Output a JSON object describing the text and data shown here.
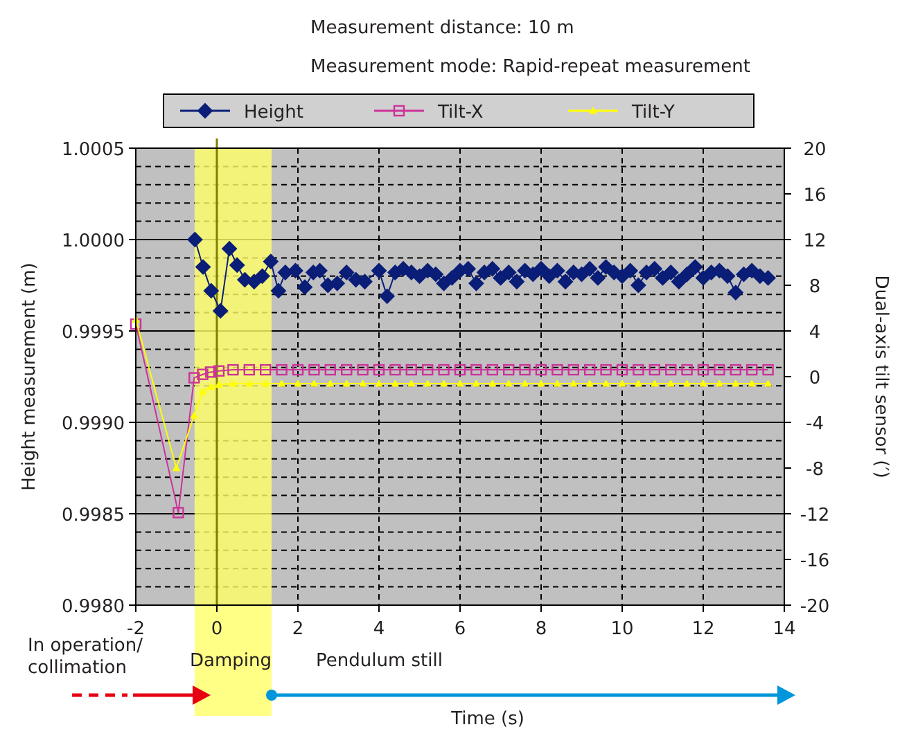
{
  "chart_data": {
    "type": "line",
    "title": "Measurement distance: 10 m",
    "subtitle": "Measurement mode: Rapid-repeat measurement",
    "xlabel": "Time (s)",
    "ylabel": "Height measurement (m)",
    "y2label": "Dual-axis tilt sensor (′)",
    "xlim": [
      -2,
      14
    ],
    "xticks": [
      -2,
      0,
      2,
      4,
      6,
      8,
      10,
      12,
      14
    ],
    "ylim": [
      0.998,
      1.0005
    ],
    "yticks": [
      {
        "value": 0.998,
        "label": "0.9980"
      },
      {
        "value": 0.9981,
        "label": null
      },
      {
        "value": 0.9982,
        "label": null
      },
      {
        "value": 0.9983,
        "label": null
      },
      {
        "value": 0.9984,
        "label": null
      },
      {
        "value": 0.9985,
        "label": "0.9985"
      },
      {
        "value": 0.9986,
        "label": null
      },
      {
        "value": 0.9987,
        "label": null
      },
      {
        "value": 0.9988,
        "label": null
      },
      {
        "value": 0.9989,
        "label": null
      },
      {
        "value": 0.999,
        "label": "0.9990"
      },
      {
        "value": 0.9991,
        "label": null
      },
      {
        "value": 0.9992,
        "label": null
      },
      {
        "value": 0.9993,
        "label": null
      },
      {
        "value": 0.9994,
        "label": null
      },
      {
        "value": 0.9995,
        "label": "0.9995"
      },
      {
        "value": 0.9996,
        "label": null
      },
      {
        "value": 0.9997,
        "label": null
      },
      {
        "value": 0.9998,
        "label": null
      },
      {
        "value": 0.9999,
        "label": null
      },
      {
        "value": 1.0,
        "label": "1.0000"
      },
      {
        "value": 1.0001,
        "label": null
      },
      {
        "value": 1.0002,
        "label": null
      },
      {
        "value": 1.0003,
        "label": null
      },
      {
        "value": 1.0004,
        "label": null
      },
      {
        "value": 1.0005,
        "label": "1.0005"
      }
    ],
    "y2lim": [
      -20,
      20
    ],
    "y2ticks": [
      -20,
      -16,
      -12,
      -8,
      -4,
      0,
      4,
      8,
      12,
      16,
      20
    ],
    "grid": true,
    "legend": "top",
    "bands": [
      {
        "axis": "x",
        "from": -0.55,
        "to": 1.35,
        "color": "#ffff66"
      }
    ],
    "ref_lines": [
      {
        "axis": "x",
        "value": 0,
        "color": "#808000"
      }
    ],
    "annotations": [
      "In operation/\ncollimation",
      "Damping",
      "Pendulum still"
    ],
    "series": [
      {
        "name": "Height",
        "color": "#0a1e78",
        "marker": "diamond",
        "x": [
          -0.54,
          -0.34,
          -0.14,
          0.09,
          0.31,
          0.5,
          0.69,
          0.92,
          1.12,
          1.33,
          1.52,
          1.69,
          1.94,
          2.17,
          2.38,
          2.54,
          2.74,
          2.97,
          3.2,
          3.43,
          3.65,
          4.0,
          4.2,
          4.4,
          4.6,
          4.8,
          5.0,
          5.2,
          5.4,
          5.6,
          5.8,
          6.0,
          6.2,
          6.4,
          6.6,
          6.8,
          7.0,
          7.2,
          7.4,
          7.6,
          7.8,
          8.0,
          8.2,
          8.4,
          8.6,
          8.8,
          9.0,
          9.2,
          9.4,
          9.6,
          9.8,
          10.0,
          10.2,
          10.4,
          10.6,
          10.8,
          11.0,
          11.2,
          11.4,
          11.6,
          11.8,
          12.0,
          12.2,
          12.4,
          12.6,
          12.8,
          13.0,
          13.2,
          13.4,
          13.6
        ],
        "values": [
          1.0,
          0.99985,
          0.99972,
          0.99961,
          0.99995,
          0.99986,
          0.99978,
          0.99977,
          0.9998,
          0.99988,
          0.99972,
          0.99982,
          0.99983,
          0.99974,
          0.99982,
          0.99983,
          0.99975,
          0.99976,
          0.99982,
          0.99978,
          0.99977,
          0.99983,
          0.99969,
          0.99982,
          0.99984,
          0.99982,
          0.9998,
          0.99983,
          0.99981,
          0.99976,
          0.99979,
          0.99983,
          0.99984,
          0.99976,
          0.99982,
          0.99984,
          0.99979,
          0.99982,
          0.99977,
          0.99983,
          0.99981,
          0.99984,
          0.9998,
          0.99983,
          0.99977,
          0.99982,
          0.99981,
          0.99984,
          0.99979,
          0.99985,
          0.99982,
          0.9998,
          0.99983,
          0.99975,
          0.99982,
          0.99984,
          0.99979,
          0.99982,
          0.99977,
          0.99981,
          0.99985,
          0.99979,
          0.99982,
          0.99983,
          0.9998,
          0.99971,
          0.99981,
          0.99983,
          0.9998,
          0.99979
        ]
      },
      {
        "name": "Tilt-X",
        "color": "#cc3399",
        "marker": "square",
        "axis": "y2",
        "x": [
          -2,
          -0.95,
          -0.56,
          -0.35,
          -0.15,
          0.05,
          0.4,
          0.8,
          1.2,
          1.6,
          2.0,
          2.4,
          2.8,
          3.2,
          3.6,
          4.0,
          4.4,
          4.8,
          5.2,
          5.6,
          6.0,
          6.4,
          6.8,
          7.2,
          7.6,
          8.0,
          8.4,
          8.8,
          9.2,
          9.6,
          10.0,
          10.4,
          10.8,
          11.2,
          11.6,
          12.0,
          12.4,
          12.8,
          13.2,
          13.6
        ],
        "values": [
          4.6,
          -11.9,
          -0.1,
          0.2,
          0.4,
          0.5,
          0.6,
          0.6,
          0.6,
          0.6,
          0.6,
          0.6,
          0.6,
          0.6,
          0.6,
          0.6,
          0.6,
          0.6,
          0.6,
          0.6,
          0.6,
          0.6,
          0.6,
          0.6,
          0.6,
          0.6,
          0.6,
          0.6,
          0.6,
          0.6,
          0.6,
          0.6,
          0.6,
          0.6,
          0.6,
          0.6,
          0.6,
          0.6,
          0.6,
          0.6
        ]
      },
      {
        "name": "Tilt-Y",
        "color": "#ffff00",
        "marker": "triangle",
        "axis": "y2",
        "x": [
          -2,
          -1.0,
          -0.56,
          -0.35,
          -0.15,
          0.05,
          0.4,
          0.8,
          1.2,
          1.6,
          2.0,
          2.4,
          2.8,
          3.2,
          3.6,
          4.0,
          4.4,
          4.8,
          5.2,
          5.6,
          6.0,
          6.4,
          6.8,
          7.2,
          7.6,
          8.0,
          8.4,
          8.8,
          9.2,
          9.6,
          10.0,
          10.4,
          10.8,
          11.2,
          11.6,
          12.0,
          12.4,
          12.8,
          13.2,
          13.6
        ],
        "values": [
          5.0,
          -8,
          -3.4,
          -1.3,
          -0.9,
          -0.7,
          -0.6,
          -0.6,
          -0.6,
          -0.6,
          -0.6,
          -0.6,
          -0.6,
          -0.6,
          -0.6,
          -0.6,
          -0.6,
          -0.6,
          -0.6,
          -0.6,
          -0.6,
          -0.6,
          -0.6,
          -0.6,
          -0.6,
          -0.6,
          -0.6,
          -0.6,
          -0.6,
          -0.6,
          -0.6,
          -0.6,
          -0.6,
          -0.6,
          -0.6,
          -0.6,
          -0.6,
          -0.6,
          -0.6,
          -0.6
        ]
      }
    ]
  }
}
